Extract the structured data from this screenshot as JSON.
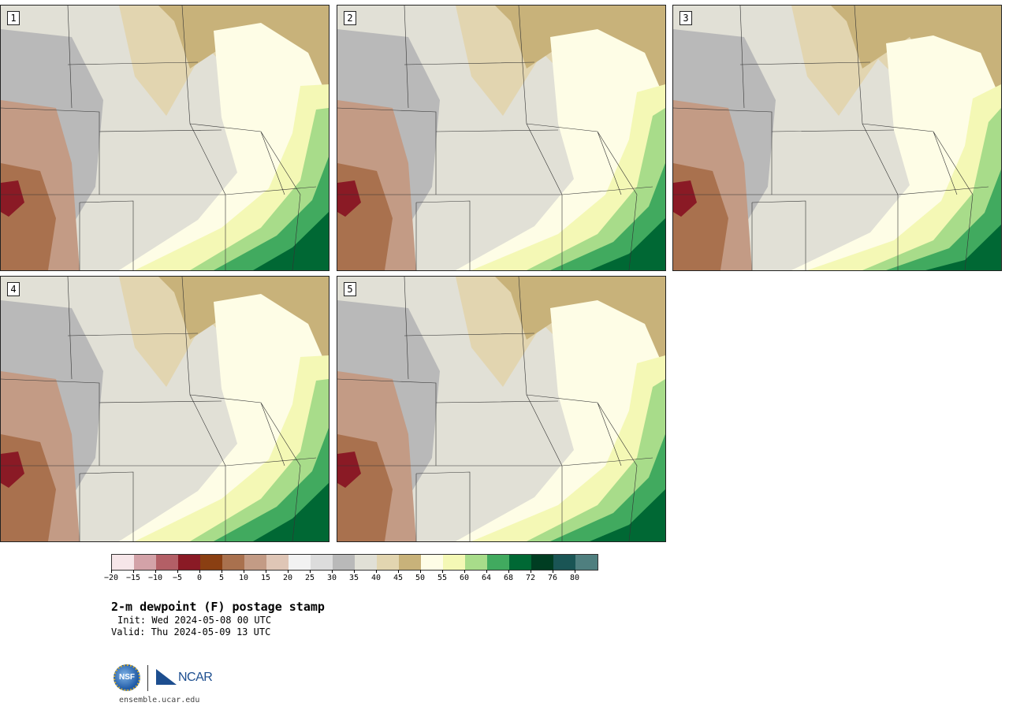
{
  "panels": [
    {
      "label": "1",
      "variant": 0
    },
    {
      "label": "2",
      "variant": 1
    },
    {
      "label": "3",
      "variant": 2
    },
    {
      "label": "4",
      "variant": 3
    },
    {
      "label": "5",
      "variant": 4
    }
  ],
  "colorbar": {
    "colors": [
      "#f6e6e9",
      "#d3a2a8",
      "#b35f66",
      "#8a1a25",
      "#8a3f12",
      "#a9714e",
      "#c39b85",
      "#dfc6b6",
      "#f2f2f2",
      "#dcdcdc",
      "#b9b9b9",
      "#e1e0d6",
      "#e2d5b0",
      "#c8b27a",
      "#fefde6",
      "#f4f8b5",
      "#a8dc8a",
      "#41aa5f",
      "#006834",
      "#003d22",
      "#1a5555",
      "#4f7f7f"
    ],
    "tick_labels": [
      "−20",
      "−15",
      "−10",
      "−5",
      "0",
      "5",
      "10",
      "15",
      "20",
      "25",
      "30",
      "35",
      "40",
      "45",
      "50",
      "55",
      "60",
      "64",
      "68",
      "72",
      "76",
      "80"
    ]
  },
  "title": "2-m dewpoint (F) postage stamp",
  "init": "Init: Wed 2024-05-08 00 UTC",
  "valid": "Valid: Thu 2024-05-09 13 UTC",
  "logos": {
    "nsf": "NSF",
    "ncar": "NCAR"
  },
  "site": "ensemble.ucar.edu"
}
